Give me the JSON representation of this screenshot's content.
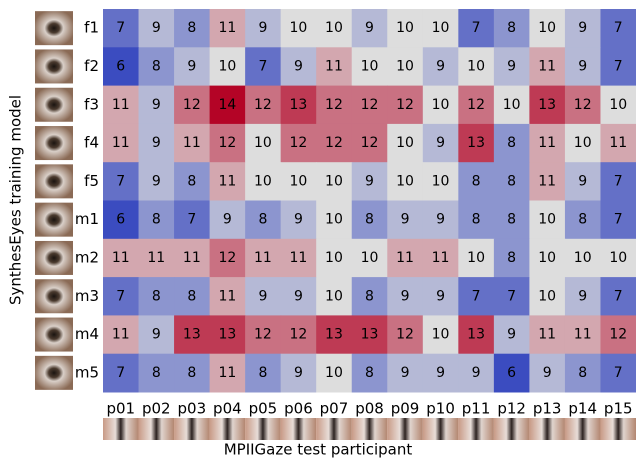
{
  "chart_data": {
    "type": "heatmap",
    "xlabel": "MPIIGaze test participant",
    "ylabel": "SynthesEyes training model",
    "categories": [
      "p01",
      "p02",
      "p03",
      "p04",
      "p05",
      "p06",
      "p07",
      "p08",
      "p09",
      "p10",
      "p11",
      "p12",
      "p13",
      "p14",
      "p15"
    ],
    "y_categories": [
      "f1",
      "f2",
      "f3",
      "f4",
      "f5",
      "m1",
      "m2",
      "m3",
      "m4",
      "m5"
    ],
    "values": [
      [
        7,
        9,
        8,
        11,
        9,
        10,
        10,
        9,
        10,
        10,
        7,
        8,
        10,
        9,
        7
      ],
      [
        6,
        8,
        9,
        10,
        7,
        9,
        11,
        10,
        10,
        9,
        10,
        9,
        11,
        9,
        7
      ],
      [
        11,
        9,
        12,
        14,
        12,
        13,
        12,
        12,
        12,
        10,
        12,
        10,
        13,
        12,
        10
      ],
      [
        11,
        9,
        11,
        12,
        10,
        12,
        12,
        12,
        10,
        9,
        13,
        8,
        11,
        10,
        11
      ],
      [
        7,
        9,
        8,
        11,
        10,
        10,
        10,
        9,
        10,
        10,
        8,
        8,
        11,
        9,
        7
      ],
      [
        6,
        8,
        7,
        9,
        8,
        9,
        10,
        8,
        9,
        9,
        8,
        8,
        10,
        8,
        7
      ],
      [
        11,
        11,
        11,
        12,
        11,
        11,
        10,
        10,
        11,
        11,
        10,
        8,
        10,
        10,
        10
      ],
      [
        7,
        8,
        8,
        11,
        9,
        9,
        10,
        8,
        9,
        9,
        7,
        7,
        10,
        9,
        7
      ],
      [
        11,
        9,
        13,
        13,
        12,
        12,
        13,
        13,
        12,
        10,
        13,
        9,
        11,
        11,
        12
      ],
      [
        7,
        8,
        8,
        11,
        8,
        9,
        10,
        8,
        9,
        9,
        9,
        6,
        9,
        8,
        7
      ]
    ],
    "colors": [
      "#3b4cc0",
      "#dddddd",
      "#b40426"
    ]
  }
}
